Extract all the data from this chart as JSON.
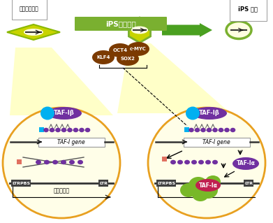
{
  "title": "iPS细胞诱导",
  "label_left": "被诱导前细胞",
  "label_right": "iPS 细胞",
  "label_retro": "逆转录病毒",
  "label_taf_gene": "TAF-I gene",
  "label_taf_ib": "TAF-Iβ",
  "label_taf_ia": "TAF-Iα",
  "label_ltrpbs": "LTRPBS",
  "label_ltr": "LTR",
  "bg_color": "#ffffff",
  "ips_bar_color": "#7ab030",
  "cell_fill": "#fffee8",
  "cell_border": "#e8a020",
  "purple_fill": "#7030a0",
  "cyan_fill": "#00b0f0",
  "factor_fill": "#7b3a00",
  "green_arrow": "#4aa020",
  "diamond_yellow": "#c8d400",
  "diamond_green_border": "#8ab800",
  "hex_green_border": "#7ab030",
  "right_circle_border": "#7ab030",
  "ltr_box_color": "#404040",
  "pink_sq": "#e86060",
  "salmon_sq": "#e07060",
  "taf_ia_red": "#c02050",
  "taf_ia_purple": "#7030a0",
  "green_blob": "#78b828",
  "beam_color": "#ffffc8"
}
